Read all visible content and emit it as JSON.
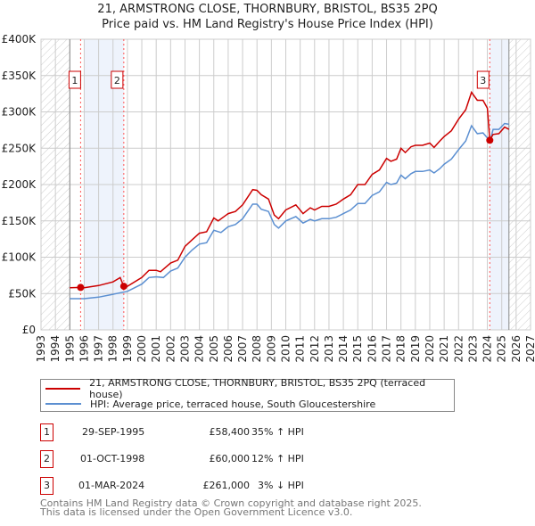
{
  "title_line1": "21, ARMSTRONG CLOSE, THORNBURY, BRISTOL, BS35 2PQ",
  "title_line2": "Price paid vs. HM Land Registry's House Price Index (HPI)",
  "legend": {
    "property": "21, ARMSTRONG CLOSE, THORNBURY, BRISTOL, BS35 2PQ (terraced house)",
    "hpi": "HPI: Average price, terraced house, South Gloucestershire"
  },
  "sales": [
    {
      "num": "1",
      "date": "29-SEP-1995",
      "price": "£58,400",
      "hpi": "35% ↑ HPI"
    },
    {
      "num": "2",
      "date": "01-OCT-1998",
      "price": "£60,000",
      "hpi": "12% ↑ HPI"
    },
    {
      "num": "3",
      "date": "01-MAR-2024",
      "price": "£261,000",
      "hpi": "3% ↓ HPI"
    }
  ],
  "footer": {
    "line1": "Contains HM Land Registry data © Crown copyright and database right 2025.",
    "line2": "This data is licensed under the Open Government Licence v3.0."
  },
  "colors": {
    "property": "#cc0000",
    "hpi": "#5b8fd1",
    "shade": "#eef3fc",
    "grid": "#cccccc"
  },
  "chart_data": {
    "type": "line",
    "xlim": [
      1993,
      2027
    ],
    "ylim": [
      0,
      400000
    ],
    "x_ticks": [
      1993,
      1994,
      1995,
      1996,
      1997,
      1998,
      1999,
      2000,
      2001,
      2002,
      2003,
      2004,
      2005,
      2006,
      2007,
      2008,
      2009,
      2010,
      2011,
      2012,
      2013,
      2014,
      2015,
      2016,
      2017,
      2018,
      2019,
      2020,
      2021,
      2022,
      2023,
      2024,
      2025,
      2026,
      2027
    ],
    "y_ticks": [
      0,
      50000,
      100000,
      150000,
      200000,
      250000,
      300000,
      350000,
      400000
    ],
    "y_tick_labels": [
      "£0",
      "£50K",
      "£100K",
      "£150K",
      "£200K",
      "£250K",
      "£300K",
      "£350K",
      "£400K"
    ],
    "grid": true,
    "data_range": [
      1995,
      2025.5
    ],
    "shaded_ranges": [
      [
        1996,
        1998.75
      ],
      [
        2024.17,
        2025.5
      ]
    ],
    "sale_points": [
      {
        "label": "1",
        "x": 1995.75,
        "y": 58400
      },
      {
        "label": "2",
        "x": 1998.75,
        "y": 60000
      },
      {
        "label": "3",
        "x": 2024.17,
        "y": 261000
      }
    ],
    "series": [
      {
        "name": "21, ARMSTRONG CLOSE, THORNBURY, BRISTOL, BS35 2PQ (terraced house)",
        "x": [
          1995,
          1995.75,
          1996,
          1997,
          1998,
          1998.5,
          1998.75,
          1999,
          2000,
          2000.5,
          2001,
          2001.3,
          2002,
          2002.5,
          2003,
          2003.5,
          2004,
          2004.5,
          2005,
          2005.3,
          2006,
          2006.5,
          2007,
          2007.7,
          2008,
          2008.3,
          2008.8,
          2009.2,
          2009.5,
          2010,
          2010.7,
          2011.2,
          2011.7,
          2012,
          2012.5,
          2013,
          2013.5,
          2014,
          2014.5,
          2015,
          2015.5,
          2016,
          2016.5,
          2017,
          2017.3,
          2017.7,
          2018,
          2018.3,
          2018.7,
          2019,
          2019.5,
          2020,
          2020.3,
          2020.7,
          2021,
          2021.5,
          2022,
          2022.5,
          2022.9,
          2023.3,
          2023.7,
          2024,
          2024.17,
          2024.4,
          2024.8,
          2025.2,
          2025.5
        ],
        "y": [
          58000,
          58400,
          58000,
          61000,
          66000,
          72000,
          60000,
          60000,
          72000,
          82000,
          82000,
          80000,
          92000,
          96000,
          115000,
          124000,
          133000,
          135000,
          154000,
          150000,
          160000,
          163000,
          172000,
          193000,
          192000,
          186000,
          180000,
          158000,
          153000,
          165000,
          172000,
          160000,
          168000,
          165000,
          170000,
          170000,
          173000,
          180000,
          186000,
          200000,
          200000,
          214000,
          220000,
          236000,
          232000,
          235000,
          250000,
          244000,
          252000,
          254000,
          254000,
          257000,
          251000,
          260000,
          266000,
          274000,
          290000,
          303000,
          327000,
          316000,
          316000,
          305000,
          261000,
          269000,
          270000,
          279000,
          276000
        ]
      },
      {
        "name": "HPI: Average price, terraced house, South Gloucestershire",
        "x": [
          1995,
          1996,
          1997,
          1998,
          1999,
          2000,
          2000.5,
          2001,
          2001.5,
          2002,
          2002.5,
          2003,
          2003.5,
          2004,
          2004.5,
          2005,
          2005.5,
          2006,
          2006.5,
          2007,
          2007.7,
          2008,
          2008.3,
          2008.8,
          2009.2,
          2009.5,
          2010,
          2010.7,
          2011.2,
          2011.7,
          2012,
          2012.5,
          2013,
          2013.5,
          2014,
          2014.5,
          2015,
          2015.5,
          2016,
          2016.5,
          2017,
          2017.3,
          2017.7,
          2018,
          2018.3,
          2018.7,
          2019,
          2019.5,
          2020,
          2020.3,
          2020.7,
          2021,
          2021.5,
          2022,
          2022.5,
          2022.9,
          2023.3,
          2023.7,
          2024,
          2024.2,
          2024.4,
          2024.8,
          2025.2,
          2025.5
        ],
        "y": [
          43000,
          43000,
          45000,
          49000,
          53000,
          63000,
          72000,
          73000,
          72000,
          81000,
          85000,
          100000,
          110000,
          118000,
          120000,
          137000,
          134000,
          142000,
          145000,
          153000,
          173000,
          173000,
          166000,
          163000,
          145000,
          140000,
          150000,
          156000,
          147000,
          152000,
          150000,
          153000,
          153000,
          155000,
          160000,
          165000,
          174000,
          174000,
          185000,
          190000,
          203000,
          200000,
          202000,
          213000,
          208000,
          215000,
          218000,
          218000,
          220000,
          216000,
          222000,
          228000,
          235000,
          248000,
          260000,
          281000,
          270000,
          271000,
          264000,
          260000,
          276000,
          276000,
          284000,
          283000
        ]
      }
    ]
  }
}
